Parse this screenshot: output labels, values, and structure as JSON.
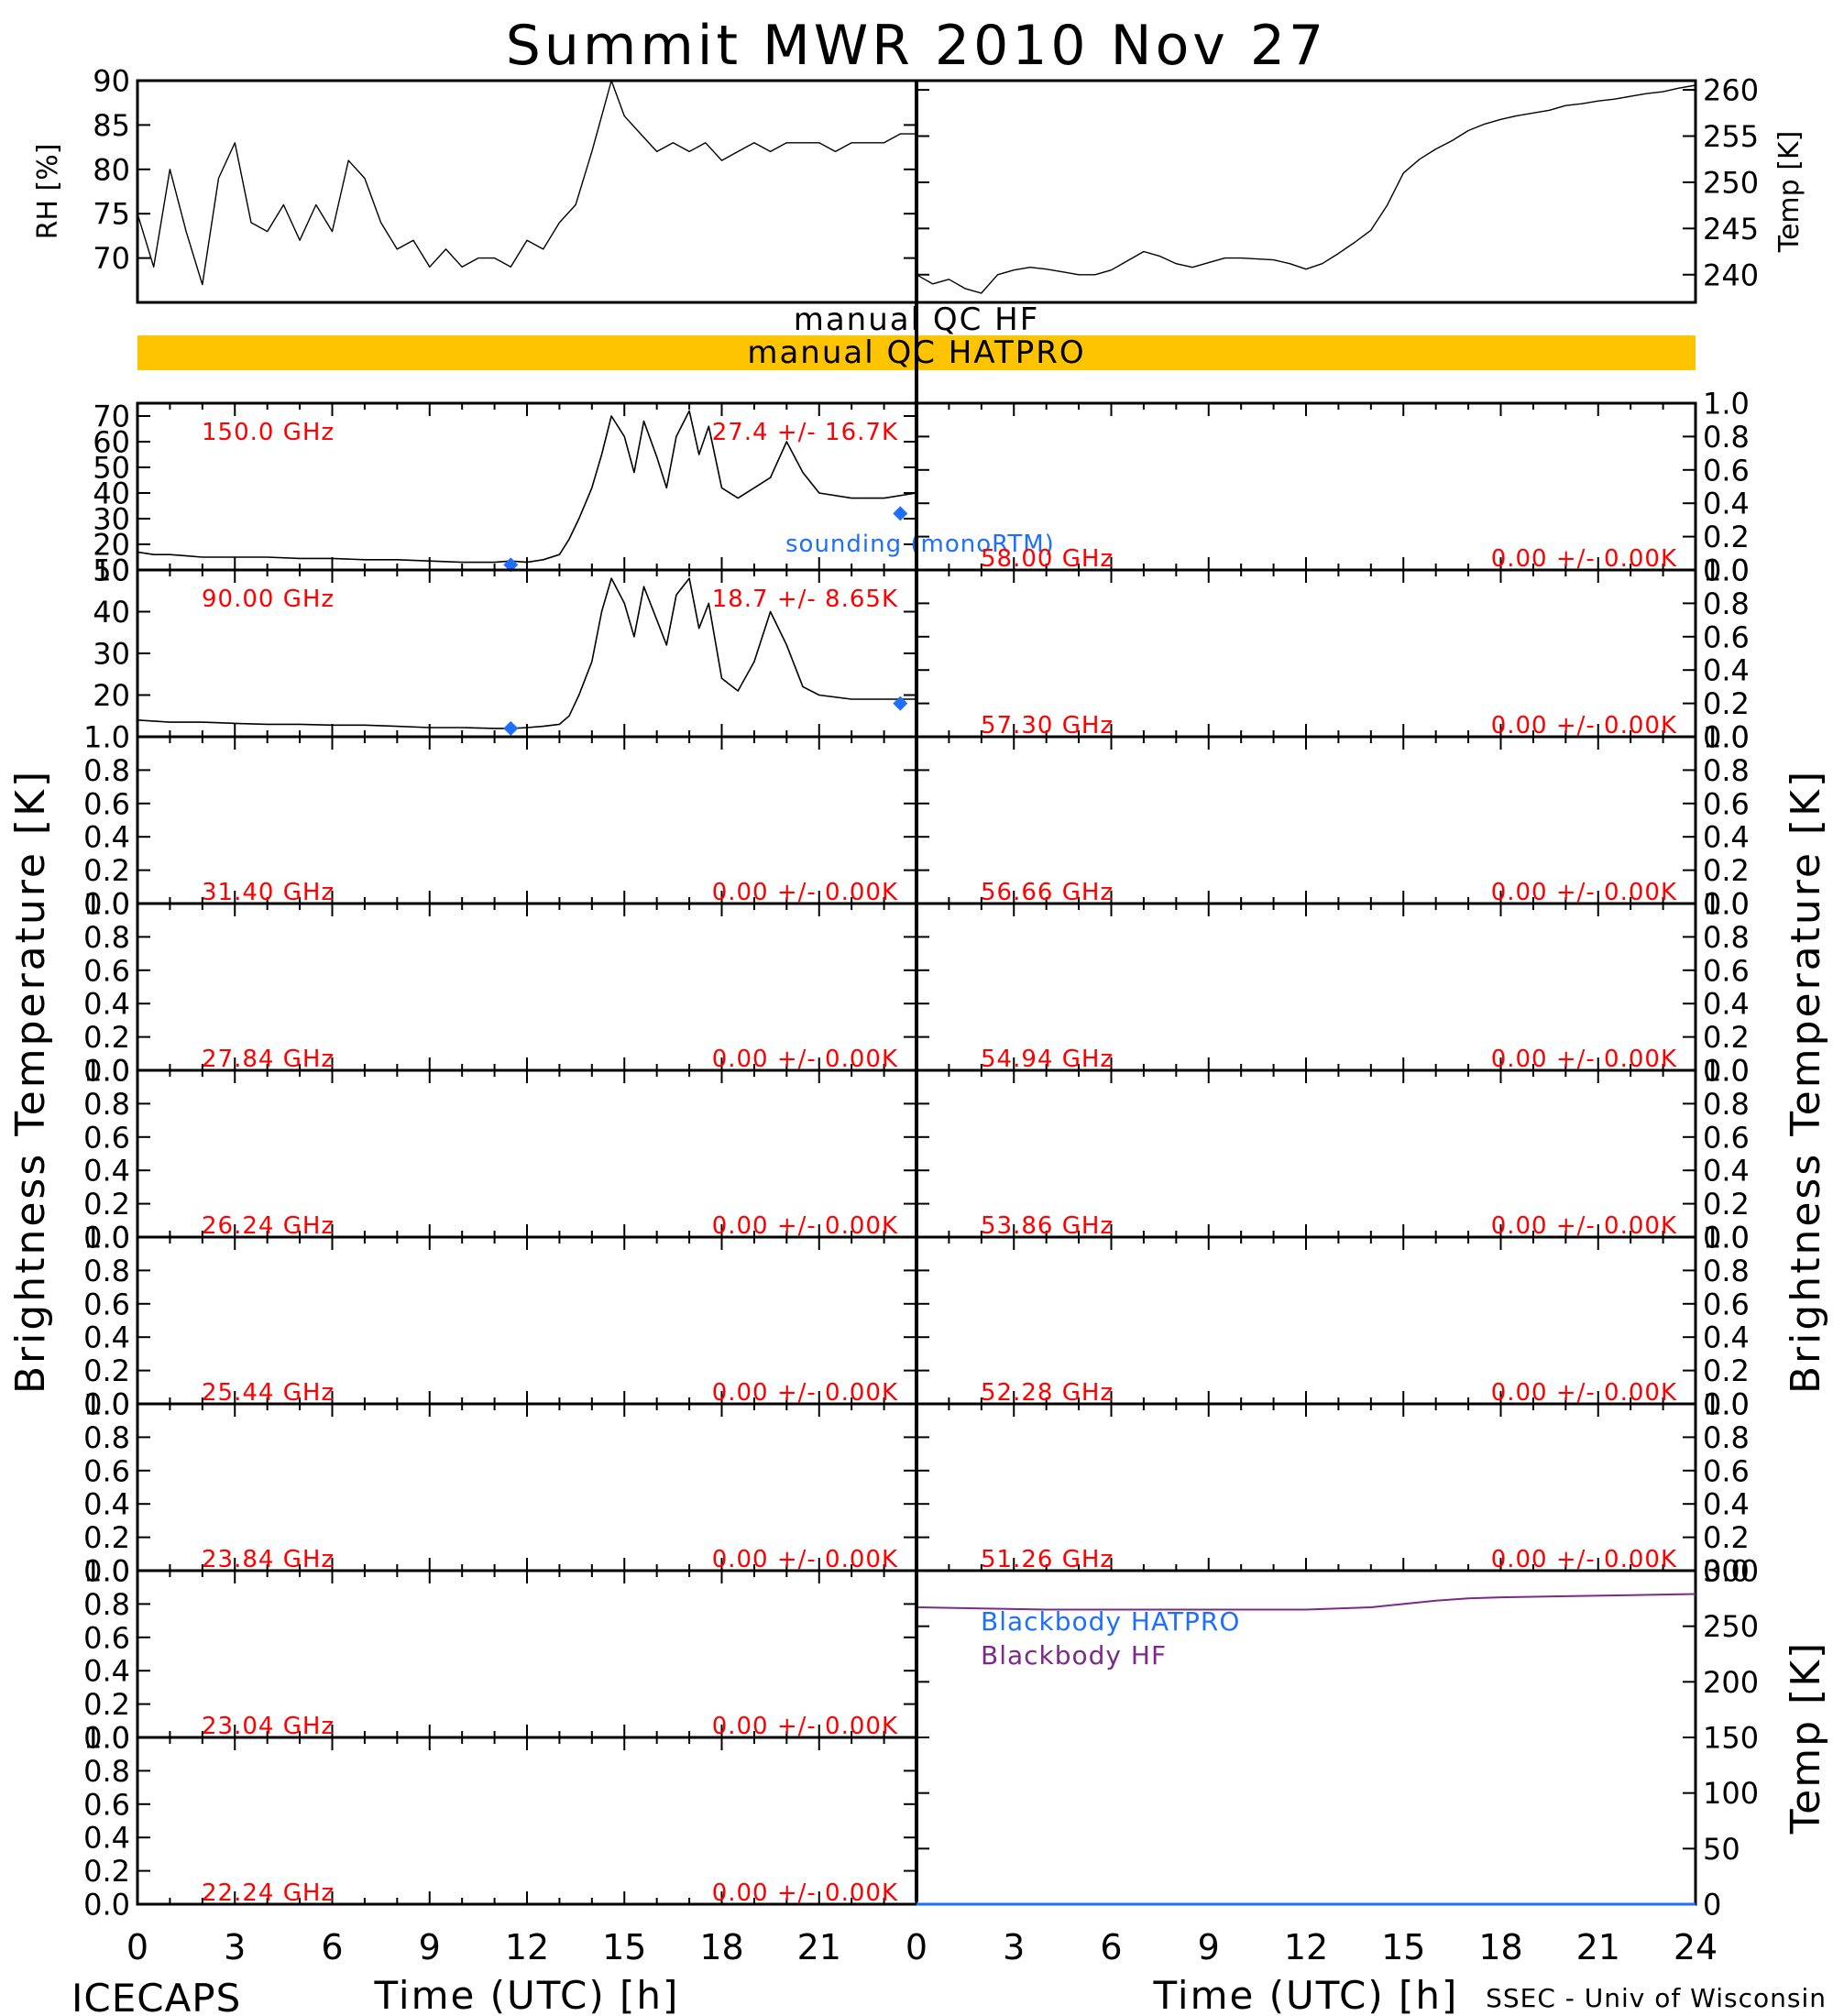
{
  "title": "Summit MWR 2010 Nov 27",
  "footer_left": "ICECAPS",
  "footer_right": "SSEC - Univ of Wisconsin",
  "colors": {
    "frame": "#000000",
    "channel_label": "#ff0000",
    "sounding": "#1e6fff",
    "qc_bar": "#ffc400",
    "bb_hatpro": "#1e6fff",
    "bb_hf": "#7b2a8a"
  },
  "qc": {
    "hf_label": "manual QC HF",
    "hatpro_label": "manual QC HATPRO"
  },
  "chart_data": [
    {
      "id": "rh",
      "type": "line",
      "ylabel": "RH [%]",
      "xlim": [
        0,
        24
      ],
      "ylim": [
        65,
        90
      ],
      "yticks": [
        "70",
        "75",
        "80",
        "85",
        "90"
      ],
      "x": [
        0,
        0.5,
        1,
        1.5,
        2,
        2.5,
        3,
        3.5,
        4,
        4.5,
        5,
        5.5,
        6,
        6.5,
        7,
        7.5,
        8,
        8.5,
        9,
        9.5,
        10,
        10.5,
        11,
        11.5,
        12,
        12.5,
        13,
        13.5,
        14,
        14.3,
        14.6,
        15,
        15.5,
        16,
        16.5,
        17,
        17.5,
        18,
        18.5,
        19,
        19.5,
        20,
        20.5,
        21,
        21.5,
        22,
        22.5,
        23,
        23.5,
        24
      ],
      "values": [
        75,
        69,
        80,
        73,
        67,
        79,
        83,
        74,
        73,
        76,
        72,
        76,
        73,
        81,
        79,
        74,
        71,
        72,
        69,
        71,
        69,
        70,
        70,
        69,
        72,
        71,
        74,
        76,
        82,
        86,
        90,
        86,
        84,
        82,
        83,
        82,
        83,
        81,
        82,
        83,
        82,
        83,
        83,
        83,
        82,
        83,
        83,
        83,
        84,
        84
      ]
    },
    {
      "id": "temp",
      "type": "line",
      "ylabel": "Temp [K]",
      "xlim": [
        0,
        24
      ],
      "ylim": [
        237,
        261
      ],
      "yticks": [
        "240",
        "245",
        "250",
        "255",
        "260"
      ],
      "x": [
        0,
        0.5,
        1,
        1.5,
        2,
        2.5,
        3,
        3.5,
        4,
        4.5,
        5,
        5.5,
        6,
        6.5,
        7,
        7.5,
        8,
        8.5,
        9,
        9.5,
        10,
        10.5,
        11,
        11.5,
        12,
        12.5,
        13,
        13.5,
        14,
        14.5,
        15,
        15.5,
        16,
        16.5,
        17,
        17.5,
        18,
        18.5,
        19,
        19.5,
        20,
        20.5,
        21,
        21.5,
        22,
        22.5,
        23,
        23.5,
        24
      ],
      "values": [
        240,
        239,
        239.5,
        238.5,
        238,
        240,
        240.5,
        240.8,
        240.6,
        240.3,
        240,
        240,
        240.5,
        241.5,
        242.5,
        242,
        241.2,
        240.8,
        241.3,
        241.8,
        241.8,
        241.7,
        241.6,
        241.2,
        240.6,
        241.2,
        242.3,
        243.5,
        244.8,
        247.5,
        251,
        252.5,
        253.6,
        254.5,
        255.6,
        256.3,
        256.8,
        257.2,
        257.5,
        257.8,
        258.3,
        258.5,
        258.8,
        259,
        259.3,
        259.6,
        259.8,
        260.2,
        260.5
      ]
    },
    {
      "id": "bt-150",
      "type": "line",
      "frequency": "150.0 GHz",
      "stats": "27.4 +/-  16.7K",
      "ylim": [
        10,
        75
      ],
      "yticks": [
        "10",
        "20",
        "30",
        "40",
        "50",
        "60",
        "70"
      ],
      "x": [
        0,
        0.5,
        1,
        1.5,
        2,
        3,
        4,
        5,
        6,
        7,
        8,
        9,
        10,
        11,
        11.5,
        12,
        12.5,
        13,
        13.3,
        13.6,
        14,
        14.3,
        14.6,
        15,
        15.3,
        15.6,
        16,
        16.3,
        16.6,
        17,
        17.3,
        17.6,
        18,
        18.5,
        19,
        19.5,
        20,
        20.5,
        21,
        22,
        23,
        24
      ],
      "values": [
        17,
        16,
        16,
        15.5,
        15,
        15,
        15,
        14.5,
        14.5,
        14,
        14,
        13.5,
        13,
        13,
        13.5,
        13,
        14,
        16,
        22,
        30,
        42,
        55,
        70,
        62,
        48,
        68,
        54,
        42,
        62,
        72,
        55,
        66,
        42,
        38,
        42,
        46,
        60,
        48,
        40,
        38,
        38,
        40
      ],
      "sounding": {
        "label": "sounding (monoRTM)",
        "x": [
          11.5,
          23.5
        ],
        "values": [
          12,
          32
        ]
      }
    },
    {
      "id": "bt-90",
      "type": "line",
      "frequency": "90.00 GHz",
      "stats": "18.7 +/-  8.65K",
      "ylim": [
        10,
        50
      ],
      "yticks": [
        "20",
        "30",
        "40",
        "50"
      ],
      "x": [
        0,
        1,
        2,
        3,
        4,
        5,
        6,
        7,
        8,
        9,
        10,
        11,
        11.5,
        12,
        12.5,
        13,
        13.3,
        13.6,
        14,
        14.3,
        14.6,
        15,
        15.3,
        15.6,
        16,
        16.3,
        16.6,
        17,
        17.3,
        17.6,
        18,
        18.5,
        19,
        19.5,
        20,
        20.5,
        21,
        22,
        23,
        24
      ],
      "values": [
        14,
        13.5,
        13.5,
        13.2,
        13,
        13,
        12.8,
        12.8,
        12.5,
        12.2,
        12.2,
        12,
        12,
        12.2,
        12.5,
        13,
        15,
        20,
        28,
        40,
        48,
        42,
        34,
        46,
        38,
        32,
        44,
        48,
        36,
        42,
        24,
        21,
        28,
        40,
        32,
        22,
        20,
        19,
        19,
        19
      ],
      "sounding": {
        "x": [
          11.5,
          23.5
        ],
        "values": [
          12,
          18
        ]
      }
    },
    {
      "id": "bt-31.40",
      "frequency": "31.40 GHz",
      "stats": "0.00 +/-  0.00K",
      "ylim": [
        0,
        1
      ],
      "yticks": [
        "0.0",
        "0.2",
        "0.4",
        "0.6",
        "0.8",
        "1.0"
      ]
    },
    {
      "id": "bt-27.84",
      "frequency": "27.84 GHz",
      "stats": "0.00 +/-  0.00K",
      "ylim": [
        0,
        1
      ],
      "yticks": [
        "0.0",
        "0.2",
        "0.4",
        "0.6",
        "0.8",
        "1.0"
      ]
    },
    {
      "id": "bt-26.24",
      "frequency": "26.24 GHz",
      "stats": "0.00 +/-  0.00K",
      "ylim": [
        0,
        1
      ],
      "yticks": [
        "0.0",
        "0.2",
        "0.4",
        "0.6",
        "0.8",
        "1.0"
      ]
    },
    {
      "id": "bt-25.44",
      "frequency": "25.44 GHz",
      "stats": "0.00 +/-  0.00K",
      "ylim": [
        0,
        1
      ],
      "yticks": [
        "0.0",
        "0.2",
        "0.4",
        "0.6",
        "0.8",
        "1.0"
      ]
    },
    {
      "id": "bt-23.84",
      "frequency": "23.84 GHz",
      "stats": "0.00 +/-  0.00K",
      "ylim": [
        0,
        1
      ],
      "yticks": [
        "0.0",
        "0.2",
        "0.4",
        "0.6",
        "0.8",
        "1.0"
      ]
    },
    {
      "id": "bt-23.04",
      "frequency": "23.04 GHz",
      "stats": "0.00 +/-  0.00K",
      "ylim": [
        0,
        1
      ],
      "yticks": [
        "0.0",
        "0.2",
        "0.4",
        "0.6",
        "0.8",
        "1.0"
      ]
    },
    {
      "id": "bt-22.24",
      "frequency": "22.24 GHz",
      "stats": "0.00 +/-  0.00K",
      "ylim": [
        0,
        1
      ],
      "yticks": [
        "0.0",
        "0.2",
        "0.4",
        "0.6",
        "0.8",
        "1.0"
      ]
    },
    {
      "id": "bt-58.00",
      "frequency": "58.00 GHz",
      "stats": "0.00 +/-  0.00K",
      "ylim": [
        0,
        1
      ],
      "yticks": [
        "0.0",
        "0.2",
        "0.4",
        "0.6",
        "0.8",
        "1.0"
      ]
    },
    {
      "id": "bt-57.30",
      "frequency": "57.30 GHz",
      "stats": "0.00 +/-  0.00K",
      "ylim": [
        0,
        1
      ],
      "yticks": [
        "0.0",
        "0.2",
        "0.4",
        "0.6",
        "0.8",
        "1.0"
      ]
    },
    {
      "id": "bt-56.66",
      "frequency": "56.66 GHz",
      "stats": "0.00 +/-  0.00K",
      "ylim": [
        0,
        1
      ],
      "yticks": [
        "0.0",
        "0.2",
        "0.4",
        "0.6",
        "0.8",
        "1.0"
      ]
    },
    {
      "id": "bt-54.94",
      "frequency": "54.94 GHz",
      "stats": "0.00 +/-  0.00K",
      "ylim": [
        0,
        1
      ],
      "yticks": [
        "0.0",
        "0.2",
        "0.4",
        "0.6",
        "0.8",
        "1.0"
      ]
    },
    {
      "id": "bt-53.86",
      "frequency": "53.86 GHz",
      "stats": "0.00 +/-  0.00K",
      "ylim": [
        0,
        1
      ],
      "yticks": [
        "0.0",
        "0.2",
        "0.4",
        "0.6",
        "0.8",
        "1.0"
      ]
    },
    {
      "id": "bt-52.28",
      "frequency": "52.28 GHz",
      "stats": "0.00 +/-  0.00K",
      "ylim": [
        0,
        1
      ],
      "yticks": [
        "0.0",
        "0.2",
        "0.4",
        "0.6",
        "0.8",
        "1.0"
      ]
    },
    {
      "id": "bt-51.26",
      "frequency": "51.26 GHz",
      "stats": "0.00 +/-  0.00K",
      "ylim": [
        0,
        1
      ],
      "yticks": [
        "0.0",
        "0.2",
        "0.4",
        "0.6",
        "0.8",
        "1.0"
      ]
    },
    {
      "id": "blackbody",
      "type": "line",
      "ylabel": "Temp [K]",
      "ylim": [
        0,
        300
      ],
      "yticks": [
        "0",
        "50",
        "100",
        "150",
        "200",
        "250",
        "300"
      ],
      "series": [
        {
          "name": "Blackbody HATPRO",
          "x": [
            0,
            24
          ],
          "values": [
            0,
            0
          ]
        },
        {
          "name": "Blackbody HF",
          "x": [
            0,
            2,
            4,
            6,
            8,
            10,
            12,
            13,
            14,
            15,
            16,
            17,
            18,
            20,
            22,
            24
          ],
          "values": [
            267,
            266,
            265,
            265,
            265,
            265,
            265,
            266,
            267,
            270,
            273,
            275,
            276,
            277,
            278,
            279
          ]
        }
      ]
    }
  ],
  "axes": {
    "bt_ylabel": "Brightness Temperature [K]",
    "xlabel": "Time (UTC) [h]",
    "xticks": [
      "0",
      "3",
      "6",
      "9",
      "12",
      "15",
      "18",
      "21",
      "24"
    ]
  }
}
